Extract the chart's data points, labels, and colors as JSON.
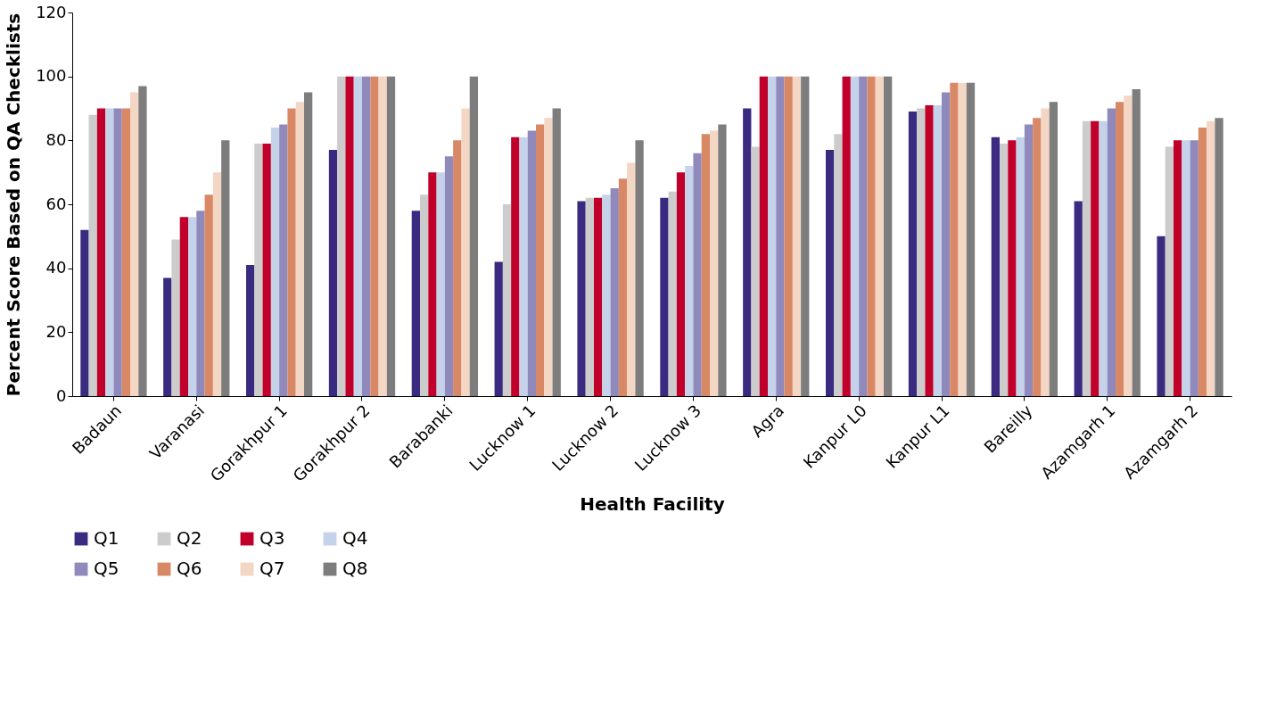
{
  "chart_data": {
    "type": "bar",
    "xlabel": "Health Facility",
    "ylabel": "Percent Score Based on QA Checklists",
    "categories": [
      "Badaun",
      "Varanasi",
      "Gorakhpur 1",
      "Gorakhpur 2",
      "Barabanki",
      "Lucknow 1",
      "Lucknow 2",
      "Lucknow 3",
      "Agra",
      "Kanpur L0",
      "Kanpur L1",
      "Bareilly",
      "Azamgarh 1",
      "Azamgarh 2"
    ],
    "ylim": [
      0,
      120
    ],
    "yticks": [
      0,
      20,
      40,
      60,
      80,
      100,
      120
    ],
    "grid": false,
    "legend": "bottom",
    "series": [
      {
        "name": "Q1",
        "color": "#3a2a80",
        "values": [
          52,
          37,
          41,
          77,
          58,
          42,
          61,
          62,
          90,
          77,
          89,
          81,
          61,
          50
        ]
      },
      {
        "name": "Q2",
        "color": "#cccccc",
        "values": [
          88,
          49,
          79,
          100,
          63,
          60,
          62,
          64,
          78,
          82,
          90,
          79,
          86,
          78
        ]
      },
      {
        "name": "Q3",
        "color": "#c0002a",
        "values": [
          90,
          56,
          79,
          100,
          70,
          81,
          62,
          70,
          100,
          100,
          91,
          80,
          86,
          80
        ]
      },
      {
        "name": "Q4",
        "color": "#c4d2ea",
        "values": [
          90,
          56,
          84,
          100,
          70,
          81,
          63,
          72,
          100,
          100,
          91,
          81,
          86,
          80
        ]
      },
      {
        "name": "Q5",
        "color": "#9089bb",
        "values": [
          90,
          58,
          85,
          100,
          75,
          83,
          65,
          76,
          100,
          100,
          95,
          85,
          90,
          80
        ]
      },
      {
        "name": "Q6",
        "color": "#d98866",
        "values": [
          90,
          63,
          90,
          100,
          80,
          85,
          68,
          82,
          100,
          100,
          98,
          87,
          92,
          84
        ]
      },
      {
        "name": "Q7",
        "color": "#f3d6c3",
        "values": [
          95,
          70,
          92,
          100,
          90,
          87,
          73,
          83,
          100,
          100,
          98,
          90,
          94,
          86
        ]
      },
      {
        "name": "Q8",
        "color": "#7d7d7d",
        "values": [
          97,
          80,
          95,
          100,
          100,
          90,
          80,
          85,
          100,
          100,
          98,
          92,
          96,
          87
        ]
      }
    ]
  }
}
